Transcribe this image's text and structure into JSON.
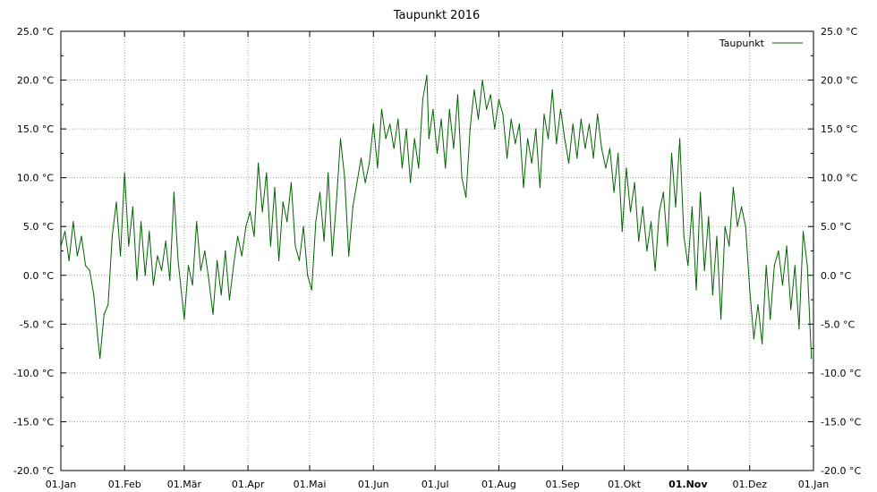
{
  "chart_data": {
    "type": "line",
    "title": "Taupunkt 2016",
    "ylim": [
      -20.0,
      25.0
    ],
    "y_ticks": [
      {
        "value": 25.0,
        "label": "25.0 °C"
      },
      {
        "value": 20.0,
        "label": "20.0 °C"
      },
      {
        "value": 15.0,
        "label": "15.0 °C"
      },
      {
        "value": 10.0,
        "label": "10.0 °C"
      },
      {
        "value": 5.0,
        "label": "5.0 °C"
      },
      {
        "value": 0.0,
        "label": "0.0 °C"
      },
      {
        "value": -5.0,
        "label": "-5.0 °C"
      },
      {
        "value": -10.0,
        "label": "-10.0 °C"
      },
      {
        "value": -15.0,
        "label": "-15.0 °C"
      },
      {
        "value": -20.0,
        "label": "-20.0 °C"
      }
    ],
    "x_ticks": [
      {
        "date": "2016-01-01",
        "label": "01.Jan",
        "bold": false
      },
      {
        "date": "2016-02-01",
        "label": "01.Feb",
        "bold": false
      },
      {
        "date": "2016-03-01",
        "label": "01.Mär",
        "bold": false
      },
      {
        "date": "2016-04-01",
        "label": "01.Apr",
        "bold": false
      },
      {
        "date": "2016-05-01",
        "label": "01.Mai",
        "bold": false
      },
      {
        "date": "2016-06-01",
        "label": "01.Jun",
        "bold": false
      },
      {
        "date": "2016-07-01",
        "label": "01.Jul",
        "bold": false
      },
      {
        "date": "2016-08-01",
        "label": "01.Aug",
        "bold": false
      },
      {
        "date": "2016-09-01",
        "label": "01.Sep",
        "bold": false
      },
      {
        "date": "2016-10-01",
        "label": "01.Okt",
        "bold": false
      },
      {
        "date": "2016-11-01",
        "label": "01.Nov",
        "bold": true
      },
      {
        "date": "2016-12-01",
        "label": "01.Dez",
        "bold": false
      },
      {
        "date": "2017-01-01",
        "label": "01.Jan",
        "bold": false
      }
    ],
    "xlim": [
      "2016-01-01",
      "2017-01-01"
    ],
    "grid": true,
    "legend": {
      "position": "top-right",
      "entries": [
        "Taupunkt"
      ]
    },
    "series": [
      {
        "name": "Taupunkt",
        "color": "#006400",
        "points": [
          [
            "2016-01-01",
            3.0
          ],
          [
            "2016-01-03",
            4.5
          ],
          [
            "2016-01-05",
            1.5
          ],
          [
            "2016-01-07",
            5.5
          ],
          [
            "2016-01-09",
            2.0
          ],
          [
            "2016-01-11",
            4.0
          ],
          [
            "2016-01-13",
            1.0
          ],
          [
            "2016-01-15",
            0.5
          ],
          [
            "2016-01-17",
            -2.0
          ],
          [
            "2016-01-19",
            -6.5
          ],
          [
            "2016-01-20",
            -8.5
          ],
          [
            "2016-01-22",
            -4.0
          ],
          [
            "2016-01-24",
            -3.0
          ],
          [
            "2016-01-26",
            4.0
          ],
          [
            "2016-01-28",
            7.5
          ],
          [
            "2016-01-30",
            2.0
          ],
          [
            "2016-02-01",
            10.5
          ],
          [
            "2016-02-03",
            3.0
          ],
          [
            "2016-02-05",
            7.0
          ],
          [
            "2016-02-07",
            -0.5
          ],
          [
            "2016-02-09",
            5.5
          ],
          [
            "2016-02-11",
            0.0
          ],
          [
            "2016-02-13",
            4.5
          ],
          [
            "2016-02-15",
            -1.0
          ],
          [
            "2016-02-17",
            2.0
          ],
          [
            "2016-02-19",
            0.5
          ],
          [
            "2016-02-21",
            3.5
          ],
          [
            "2016-02-23",
            -0.5
          ],
          [
            "2016-02-25",
            8.5
          ],
          [
            "2016-02-27",
            1.5
          ],
          [
            "2016-03-01",
            -4.5
          ],
          [
            "2016-03-03",
            1.0
          ],
          [
            "2016-03-05",
            -1.0
          ],
          [
            "2016-03-07",
            5.5
          ],
          [
            "2016-03-09",
            0.5
          ],
          [
            "2016-03-11",
            2.5
          ],
          [
            "2016-03-13",
            -0.5
          ],
          [
            "2016-03-15",
            -4.0
          ],
          [
            "2016-03-17",
            1.5
          ],
          [
            "2016-03-19",
            -2.0
          ],
          [
            "2016-03-21",
            2.5
          ],
          [
            "2016-03-23",
            -2.5
          ],
          [
            "2016-03-25",
            1.0
          ],
          [
            "2016-03-27",
            4.0
          ],
          [
            "2016-03-29",
            2.0
          ],
          [
            "2016-03-31",
            5.0
          ],
          [
            "2016-04-02",
            6.5
          ],
          [
            "2016-04-04",
            4.0
          ],
          [
            "2016-04-06",
            11.5
          ],
          [
            "2016-04-08",
            6.5
          ],
          [
            "2016-04-10",
            10.5
          ],
          [
            "2016-04-12",
            3.0
          ],
          [
            "2016-04-14",
            9.0
          ],
          [
            "2016-04-16",
            1.5
          ],
          [
            "2016-04-18",
            7.5
          ],
          [
            "2016-04-20",
            5.5
          ],
          [
            "2016-04-22",
            9.5
          ],
          [
            "2016-04-24",
            3.0
          ],
          [
            "2016-04-26",
            1.5
          ],
          [
            "2016-04-28",
            5.0
          ],
          [
            "2016-04-30",
            0.0
          ],
          [
            "2016-05-02",
            -1.5
          ],
          [
            "2016-05-04",
            5.5
          ],
          [
            "2016-05-06",
            8.5
          ],
          [
            "2016-05-08",
            3.5
          ],
          [
            "2016-05-10",
            10.5
          ],
          [
            "2016-05-12",
            2.0
          ],
          [
            "2016-05-14",
            7.5
          ],
          [
            "2016-05-16",
            14.0
          ],
          [
            "2016-05-18",
            10.0
          ],
          [
            "2016-05-20",
            2.0
          ],
          [
            "2016-05-22",
            7.0
          ],
          [
            "2016-05-24",
            9.5
          ],
          [
            "2016-05-26",
            12.0
          ],
          [
            "2016-05-28",
            9.5
          ],
          [
            "2016-05-30",
            11.5
          ],
          [
            "2016-06-01",
            15.5
          ],
          [
            "2016-06-03",
            11.0
          ],
          [
            "2016-06-05",
            17.0
          ],
          [
            "2016-06-07",
            14.0
          ],
          [
            "2016-06-09",
            15.5
          ],
          [
            "2016-06-11",
            13.0
          ],
          [
            "2016-06-13",
            16.0
          ],
          [
            "2016-06-15",
            11.0
          ],
          [
            "2016-06-17",
            15.0
          ],
          [
            "2016-06-19",
            9.5
          ],
          [
            "2016-06-21",
            14.0
          ],
          [
            "2016-06-23",
            11.0
          ],
          [
            "2016-06-25",
            18.0
          ],
          [
            "2016-06-27",
            20.5
          ],
          [
            "2016-06-28",
            14.0
          ],
          [
            "2016-06-30",
            17.0
          ],
          [
            "2016-07-02",
            12.5
          ],
          [
            "2016-07-04",
            16.0
          ],
          [
            "2016-07-06",
            11.0
          ],
          [
            "2016-07-08",
            17.0
          ],
          [
            "2016-07-10",
            13.0
          ],
          [
            "2016-07-12",
            18.5
          ],
          [
            "2016-07-14",
            10.0
          ],
          [
            "2016-07-16",
            8.0
          ],
          [
            "2016-07-18",
            15.0
          ],
          [
            "2016-07-20",
            19.0
          ],
          [
            "2016-07-22",
            16.0
          ],
          [
            "2016-07-24",
            20.0
          ],
          [
            "2016-07-26",
            17.0
          ],
          [
            "2016-07-28",
            18.5
          ],
          [
            "2016-07-30",
            15.0
          ],
          [
            "2016-08-01",
            18.0
          ],
          [
            "2016-08-03",
            16.5
          ],
          [
            "2016-08-05",
            12.0
          ],
          [
            "2016-08-07",
            16.0
          ],
          [
            "2016-08-09",
            13.5
          ],
          [
            "2016-08-11",
            15.5
          ],
          [
            "2016-08-13",
            9.0
          ],
          [
            "2016-08-15",
            14.0
          ],
          [
            "2016-08-17",
            11.5
          ],
          [
            "2016-08-19",
            15.0
          ],
          [
            "2016-08-21",
            9.0
          ],
          [
            "2016-08-23",
            16.5
          ],
          [
            "2016-08-25",
            14.0
          ],
          [
            "2016-08-27",
            19.0
          ],
          [
            "2016-08-29",
            13.5
          ],
          [
            "2016-08-31",
            17.0
          ],
          [
            "2016-09-02",
            14.0
          ],
          [
            "2016-09-04",
            11.5
          ],
          [
            "2016-09-06",
            15.5
          ],
          [
            "2016-09-08",
            12.0
          ],
          [
            "2016-09-10",
            16.0
          ],
          [
            "2016-09-12",
            13.0
          ],
          [
            "2016-09-14",
            15.5
          ],
          [
            "2016-09-16",
            12.0
          ],
          [
            "2016-09-18",
            16.5
          ],
          [
            "2016-09-20",
            13.0
          ],
          [
            "2016-09-22",
            11.0
          ],
          [
            "2016-09-24",
            13.0
          ],
          [
            "2016-09-26",
            8.5
          ],
          [
            "2016-09-28",
            12.5
          ],
          [
            "2016-09-30",
            4.5
          ],
          [
            "2016-10-02",
            11.0
          ],
          [
            "2016-10-04",
            6.5
          ],
          [
            "2016-10-06",
            9.5
          ],
          [
            "2016-10-08",
            3.5
          ],
          [
            "2016-10-10",
            7.0
          ],
          [
            "2016-10-12",
            2.5
          ],
          [
            "2016-10-14",
            5.5
          ],
          [
            "2016-10-16",
            0.5
          ],
          [
            "2016-10-18",
            6.5
          ],
          [
            "2016-10-20",
            8.5
          ],
          [
            "2016-10-22",
            3.0
          ],
          [
            "2016-10-24",
            12.5
          ],
          [
            "2016-10-26",
            7.0
          ],
          [
            "2016-10-28",
            14.0
          ],
          [
            "2016-10-30",
            4.0
          ],
          [
            "2016-11-01",
            1.0
          ],
          [
            "2016-11-03",
            7.0
          ],
          [
            "2016-11-05",
            -1.5
          ],
          [
            "2016-11-07",
            8.5
          ],
          [
            "2016-11-09",
            0.5
          ],
          [
            "2016-11-11",
            6.0
          ],
          [
            "2016-11-13",
            -2.0
          ],
          [
            "2016-11-15",
            4.0
          ],
          [
            "2016-11-17",
            -4.5
          ],
          [
            "2016-11-19",
            5.0
          ],
          [
            "2016-11-21",
            3.0
          ],
          [
            "2016-11-23",
            9.0
          ],
          [
            "2016-11-25",
            5.0
          ],
          [
            "2016-11-27",
            7.0
          ],
          [
            "2016-11-29",
            5.0
          ],
          [
            "2016-12-01",
            -1.5
          ],
          [
            "2016-12-03",
            -6.5
          ],
          [
            "2016-12-05",
            -3.0
          ],
          [
            "2016-12-07",
            -7.0
          ],
          [
            "2016-12-09",
            1.0
          ],
          [
            "2016-12-11",
            -4.5
          ],
          [
            "2016-12-13",
            1.0
          ],
          [
            "2016-12-15",
            2.5
          ],
          [
            "2016-12-17",
            -1.0
          ],
          [
            "2016-12-19",
            3.0
          ],
          [
            "2016-12-21",
            -3.5
          ],
          [
            "2016-12-23",
            1.0
          ],
          [
            "2016-12-25",
            -5.5
          ],
          [
            "2016-12-27",
            4.5
          ],
          [
            "2016-12-29",
            1.0
          ],
          [
            "2016-12-31",
            -8.5
          ]
        ]
      }
    ]
  }
}
